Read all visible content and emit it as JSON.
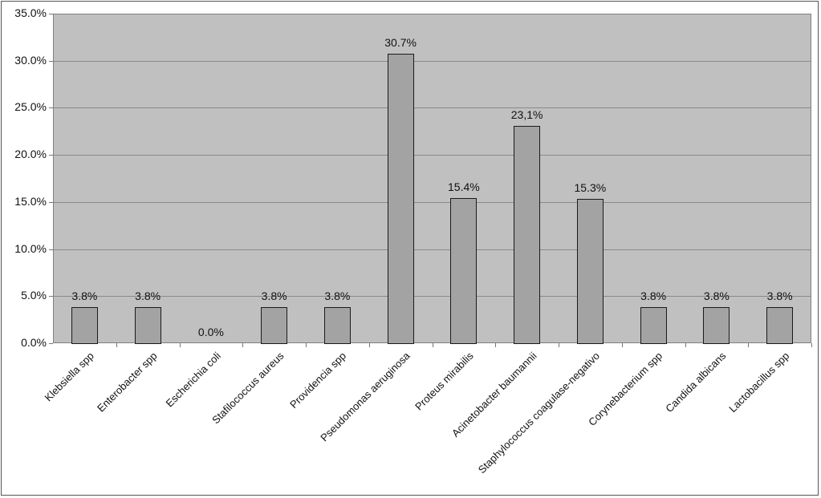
{
  "chart_data": {
    "type": "bar",
    "title": "",
    "xlabel": "",
    "ylabel": "",
    "ylim": [
      0,
      35
    ],
    "yticks": [
      "0.0%",
      "5.0%",
      "10.0%",
      "15.0%",
      "20.0%",
      "25.0%",
      "30.0%",
      "35.0%"
    ],
    "grid": true,
    "legend": null,
    "categories": [
      "Klebsiella spp",
      "Enterobacter spp",
      "Escherichia coli",
      "Stafilococcus aureus",
      "Providencia spp",
      "Pseudomonas aeruginosa",
      "Proteus mirabilis",
      "Acinetobacter baumannii",
      "Staphylococcus coagulase-negativo",
      "Corynebacterium spp",
      "Candida albicans",
      "Lactobacillus spp"
    ],
    "values": [
      3.8,
      3.8,
      0.0,
      3.8,
      3.8,
      30.7,
      15.4,
      23.1,
      15.3,
      3.8,
      3.8,
      3.8
    ],
    "value_labels": [
      "3.8%",
      "3.8%",
      "0.0%",
      "3.8%",
      "3.8%",
      "30.7%",
      "15.4%",
      "23,1%",
      "15.3%",
      "3.8%",
      "3.8%",
      "3.8%"
    ],
    "colors": {
      "plot_bg": "#c0c0c0",
      "bar_fill": "#a3a3a3",
      "bar_border": "#1a1a1a",
      "gridline": "#8a8a8a"
    }
  }
}
